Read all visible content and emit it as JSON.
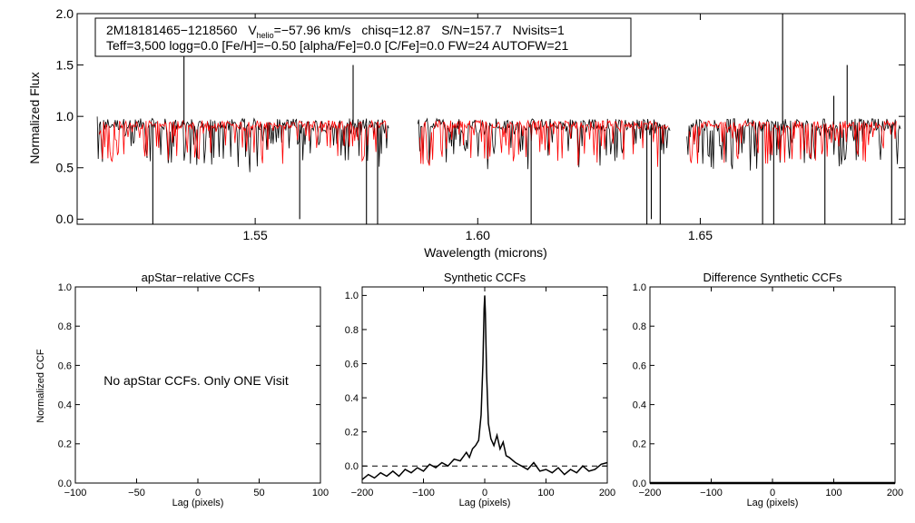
{
  "chart_data": [
    {
      "id": "spectrum",
      "type": "line",
      "title": "",
      "xlabel": "Wavelength (microns)",
      "ylabel": "Normalized Flux",
      "xlim": [
        1.51,
        1.696
      ],
      "ylim": [
        -0.05,
        2.0
      ],
      "xticks": [
        1.55,
        1.6,
        1.65
      ],
      "xtick_labels": [
        "1.55",
        "1.60",
        "1.65"
      ],
      "yticks": [
        0.0,
        0.5,
        1.0,
        1.5,
        2.0
      ],
      "ytick_labels": [
        "0.0",
        "0.5",
        "1.0",
        "1.5",
        "2.0"
      ],
      "annotation": {
        "star_id": "2M18181465−1218560",
        "vhelio_label": "V",
        "vhelio_sub": "helio",
        "vhelio_value": "=−57.96 km/s",
        "chisq": "chisq=12.87",
        "sn": "S/N=157.7",
        "nvisits": "Nvisits=1",
        "line2": "Teff=3,500 logg=0.0 [Fe/H]=−0.50 [alpha/Fe]=0.0 [C/Fe]=0.0 FW=24 AUTOFW=21"
      },
      "series": [
        {
          "name": "observed",
          "color": "#000000",
          "chips": [
            [
              1.5145,
              1.58
            ],
            [
              1.5865,
              1.6432
            ],
            [
              1.647,
              1.695
            ]
          ]
        },
        {
          "name": "model",
          "color": "#ff0000",
          "chips": [
            [
              1.515,
              1.5795
            ],
            [
              1.587,
              1.6428
            ],
            [
              1.6475,
              1.694
            ]
          ]
        }
      ],
      "continuum": 0.92,
      "strong_lines_observed": [
        {
          "x": 1.527,
          "y": -0.05
        },
        {
          "x": 1.534,
          "y": 1.85
        },
        {
          "x": 1.56,
          "y": 0.0
        },
        {
          "x": 1.572,
          "y": 1.5
        },
        {
          "x": 1.575,
          "y": -0.05
        },
        {
          "x": 1.5775,
          "y": -0.05
        },
        {
          "x": 1.612,
          "y": -0.05
        },
        {
          "x": 1.638,
          "y": -0.05
        },
        {
          "x": 1.639,
          "y": 0.0
        },
        {
          "x": 1.641,
          "y": -0.05
        },
        {
          "x": 1.664,
          "y": -0.05
        },
        {
          "x": 1.6665,
          "y": -0.05
        },
        {
          "x": 1.6685,
          "y": 2.0
        },
        {
          "x": 1.678,
          "y": -0.05
        },
        {
          "x": 1.68,
          "y": 1.2
        },
        {
          "x": 1.683,
          "y": 1.5
        },
        {
          "x": 1.693,
          "y": -0.05
        }
      ]
    },
    {
      "id": "apstar-ccf",
      "type": "line",
      "title": "apStar−relative CCFs",
      "xlabel": "Lag (pixels)",
      "ylabel": "Normalized CCF",
      "xlim": [
        -100,
        100
      ],
      "ylim": [
        0.0,
        1.0
      ],
      "xticks": [
        -100,
        -50,
        0,
        50,
        100
      ],
      "xtick_labels": [
        "−100",
        "−50",
        "0",
        "50",
        "100"
      ],
      "yticks": [
        0.0,
        0.2,
        0.4,
        0.6,
        0.8,
        1.0
      ],
      "ytick_labels": [
        "0.0",
        "0.2",
        "0.4",
        "0.6",
        "0.8",
        "1.0"
      ],
      "message": "No apStar CCFs.  Only ONE Visit",
      "series": []
    },
    {
      "id": "synthetic-ccf",
      "type": "line",
      "title": "Synthetic CCFs",
      "xlabel": "Lag (pixels)",
      "ylabel": "",
      "xlim": [
        -200,
        200
      ],
      "ylim": [
        -0.1,
        1.05
      ],
      "xticks": [
        -200,
        -100,
        0,
        100,
        200
      ],
      "xtick_labels": [
        "−200",
        "−100",
        "0",
        "100",
        "200"
      ],
      "yticks": [
        0.0,
        0.2,
        0.4,
        0.6,
        0.8,
        1.0
      ],
      "ytick_labels": [
        "0.0",
        "0.2",
        "0.4",
        "0.6",
        "0.8",
        "1.0"
      ],
      "zero_line": 0.0,
      "peak": {
        "lag": 0,
        "value": 1.0
      },
      "series": [
        {
          "name": "ccf",
          "color": "#000000",
          "x": [
            -200,
            -190,
            -180,
            -170,
            -160,
            -150,
            -140,
            -130,
            -120,
            -110,
            -100,
            -90,
            -80,
            -70,
            -60,
            -50,
            -40,
            -30,
            -25,
            -20,
            -15,
            -10,
            -6,
            -3,
            -1,
            0,
            1,
            3,
            6,
            10,
            15,
            20,
            25,
            30,
            35,
            40,
            50,
            60,
            70,
            80,
            90,
            100,
            110,
            120,
            130,
            140,
            150,
            160,
            170,
            180,
            190,
            200
          ],
          "y": [
            -0.08,
            -0.05,
            -0.07,
            -0.04,
            -0.06,
            -0.03,
            -0.06,
            -0.02,
            -0.04,
            -0.01,
            -0.03,
            0.01,
            -0.01,
            0.02,
            0.0,
            0.04,
            0.03,
            0.08,
            0.05,
            0.1,
            0.12,
            0.15,
            0.3,
            0.6,
            0.92,
            1.0,
            0.9,
            0.55,
            0.25,
            0.16,
            0.12,
            0.18,
            0.1,
            0.14,
            0.06,
            0.05,
            0.02,
            0.0,
            -0.02,
            0.02,
            -0.03,
            -0.02,
            -0.04,
            -0.01,
            -0.05,
            -0.02,
            -0.04,
            0.0,
            -0.03,
            -0.02,
            0.01,
            0.02
          ]
        }
      ]
    },
    {
      "id": "difference-ccf",
      "type": "line",
      "title": "Difference Synthetic CCFs",
      "xlabel": "Lag (pixels)",
      "ylabel": "",
      "xlim": [
        -200,
        200
      ],
      "ylim": [
        0.0,
        1.0
      ],
      "xticks": [
        -200,
        -100,
        0,
        100,
        200
      ],
      "xtick_labels": [
        "−200",
        "−100",
        "0",
        "100",
        "200"
      ],
      "yticks": [
        0.0,
        0.2,
        0.4,
        0.6,
        0.8,
        1.0
      ],
      "ytick_labels": [
        "0.0",
        "0.2",
        "0.4",
        "0.6",
        "0.8",
        "1.0"
      ],
      "series": [
        {
          "name": "difference",
          "color": "#000000",
          "x": [
            -200,
            200
          ],
          "y": [
            0.0,
            0.0
          ]
        }
      ]
    }
  ]
}
